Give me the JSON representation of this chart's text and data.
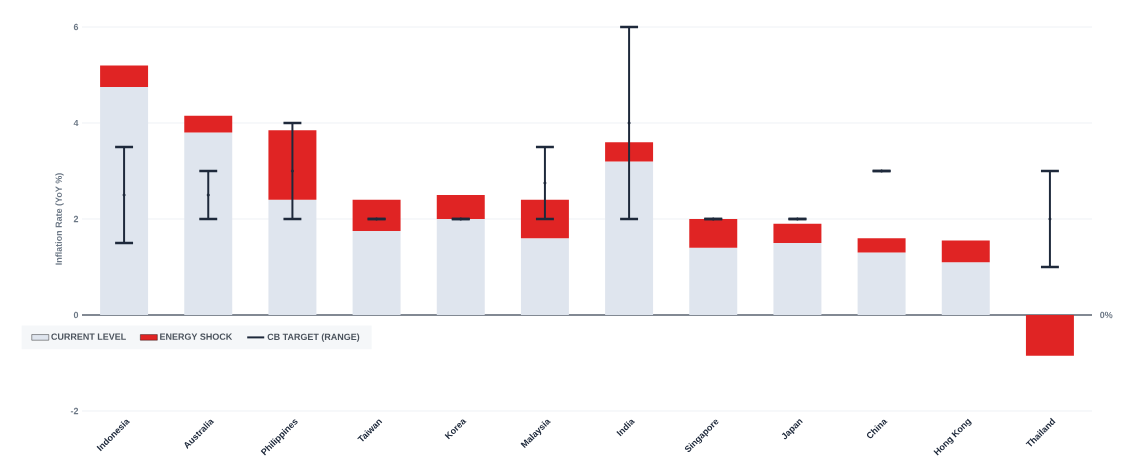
{
  "chart_data": {
    "type": "bar",
    "stacked": true,
    "ylabel": "Inflation Rate (YoY %)",
    "categories": [
      "Indonesia",
      "Australia",
      "Philippines",
      "Taiwan",
      "Korea",
      "Malaysia",
      "India",
      "Singapore",
      "Japan",
      "China",
      "Hong Kong",
      "Thailand"
    ],
    "series": [
      {
        "name": "CURRENT LEVEL",
        "color": "#dfe5ee",
        "values": [
          4.75,
          3.8,
          2.4,
          1.75,
          2.0,
          1.6,
          3.2,
          1.4,
          1.5,
          1.3,
          1.1,
          0
        ]
      },
      {
        "name": "ENERGY SHOCK",
        "color": "#e02424",
        "values": [
          0.45,
          0.35,
          1.45,
          0.65,
          0.5,
          0.8,
          0.4,
          0.6,
          0.4,
          0.3,
          0.45,
          -0.85
        ]
      },
      {
        "name": "CB TARGET (RANGE)",
        "color": "#1e293b",
        "type": "scatter",
        "values": [
          2.5,
          2.5,
          3,
          2,
          2,
          2.75,
          4,
          2,
          2,
          3,
          null,
          2
        ],
        "errors": [
          1,
          0.5,
          1,
          0,
          0,
          0.75,
          2,
          0,
          0,
          0,
          null,
          1
        ]
      }
    ],
    "ylim": [
      -2,
      6
    ],
    "yticks": [
      -2,
      0,
      2,
      4,
      6
    ],
    "grid": "y",
    "legend": "bottom left",
    "ref_lines": [
      {
        "axis": "y",
        "value": 0,
        "label": "0%",
        "color": "#5b6470"
      }
    ]
  }
}
